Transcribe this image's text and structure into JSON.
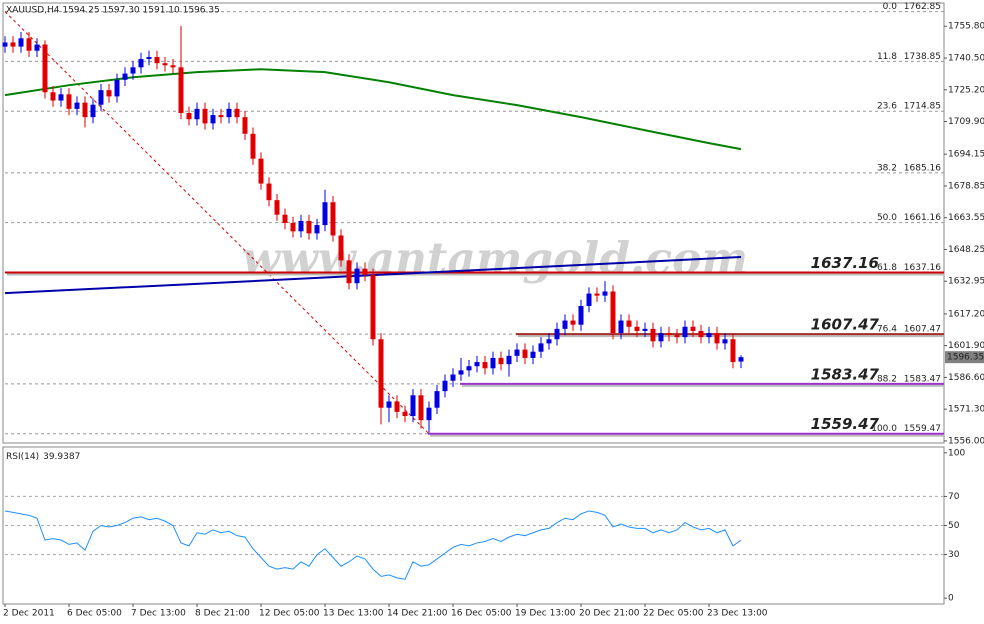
{
  "chart_data": [
    {
      "type": "candlestick",
      "title": "XAUUSD,H4  1594.25 1597.30 1591.10 1596.35",
      "watermark": "www.antamgold.com",
      "categories": [
        "2 Dec 2011",
        null,
        null,
        null,
        null,
        null,
        null,
        null,
        "6 Dec 05:00",
        null,
        null,
        null,
        null,
        null,
        null,
        null,
        "7 Dec 13:00",
        null,
        null,
        null,
        null,
        null,
        null,
        null,
        "8 Dec 21:00",
        null,
        null,
        null,
        null,
        null,
        null,
        null,
        "12 Dec 05:00",
        null,
        null,
        null,
        null,
        null,
        null,
        null,
        "13 Dec 13:00",
        null,
        null,
        null,
        null,
        null,
        null,
        null,
        "14 Dec 21:00",
        null,
        null,
        null,
        null,
        null,
        null,
        null,
        "16 Dec 05:00",
        null,
        null,
        null,
        null,
        null,
        null,
        null,
        "19 Dec 13:00",
        null,
        null,
        null,
        null,
        null,
        null,
        null,
        "20 Dec 21:00",
        null,
        null,
        null,
        null,
        null,
        null,
        null,
        "22 Dec 05:00",
        null,
        null,
        null,
        null,
        null,
        null,
        null,
        "23 Dec 13:00",
        null,
        null,
        null,
        null
      ],
      "open": [
        1746,
        1748,
        1746,
        1750,
        1744,
        1747,
        1724,
        1720,
        1723,
        1716,
        1719,
        1712,
        1718,
        1725,
        1722,
        1730,
        1733,
        1736,
        1740,
        1741,
        1738,
        1737,
        1736,
        1714,
        1711,
        1716,
        1709,
        1713,
        1712,
        1716,
        1712,
        1704,
        1692,
        1680,
        1672,
        1665,
        1661,
        1657,
        1662,
        1656,
        1660,
        1671,
        1655,
        1643,
        1632,
        1639,
        1636,
        1605,
        1572,
        1575,
        1570,
        1568,
        1578,
        1566,
        1572,
        1580,
        1585,
        1588,
        1590,
        1592,
        1594,
        1591,
        1596,
        1593,
        1597,
        1600,
        1596,
        1599,
        1603,
        1605,
        1610,
        1614,
        1612,
        1621,
        1627,
        1626,
        1628,
        1608,
        1614,
        1611,
        1609,
        1610,
        1604,
        1608,
        1607,
        1606,
        1611,
        1609,
        1606,
        1608,
        1603,
        1605,
        1594.25
      ],
      "high": [
        1751,
        1751,
        1753,
        1753,
        1750,
        1749,
        1727,
        1726,
        1726,
        1722,
        1722,
        1721,
        1728,
        1728,
        1733,
        1736,
        1739,
        1743,
        1744,
        1744,
        1741,
        1740,
        1756,
        1717,
        1719,
        1719,
        1716,
        1716,
        1719,
        1719,
        1715,
        1707,
        1695,
        1683,
        1675,
        1668,
        1664,
        1665,
        1665,
        1663,
        1677,
        1674,
        1658,
        1646,
        1642,
        1642,
        1639,
        1608,
        1578,
        1578,
        1573,
        1581,
        1581,
        1575,
        1583,
        1588,
        1591,
        1596,
        1595,
        1597,
        1597,
        1599,
        1599,
        1600,
        1603,
        1603,
        1602,
        1606,
        1608,
        1613,
        1617,
        1617,
        1624,
        1630,
        1630,
        1633,
        1631,
        1617,
        1617,
        1614,
        1613,
        1613,
        1611,
        1611,
        1610,
        1614,
        1614,
        1612,
        1611,
        1611,
        1608,
        1608,
        1597.3
      ],
      "low": [
        1743,
        1743,
        1743,
        1741,
        1741,
        1721,
        1717,
        1717,
        1713,
        1713,
        1707,
        1709,
        1715,
        1719,
        1719,
        1727,
        1730,
        1733,
        1737,
        1735,
        1734,
        1733,
        1711,
        1708,
        1708,
        1706,
        1706,
        1709,
        1709,
        1709,
        1701,
        1689,
        1677,
        1669,
        1662,
        1658,
        1654,
        1654,
        1653,
        1653,
        1657,
        1652,
        1640,
        1629,
        1629,
        1633,
        1602,
        1564,
        1565,
        1567,
        1565,
        1565,
        1562,
        1560,
        1569,
        1577,
        1582,
        1585,
        1587,
        1589,
        1588,
        1588,
        1590,
        1587,
        1594,
        1593,
        1593,
        1596,
        1600,
        1602,
        1607,
        1609,
        1609,
        1618,
        1623,
        1623,
        1605,
        1605,
        1608,
        1606,
        1606,
        1601,
        1601,
        1604,
        1603,
        1603,
        1606,
        1603,
        1603,
        1600,
        1600,
        1591,
        1591.1
      ],
      "close": [
        1748,
        1746,
        1750,
        1744,
        1747,
        1724,
        1720,
        1723,
        1716,
        1719,
        1712,
        1718,
        1725,
        1722,
        1730,
        1733,
        1736,
        1740,
        1741,
        1738,
        1737,
        1736,
        1714,
        1711,
        1716,
        1709,
        1713,
        1712,
        1716,
        1712,
        1704,
        1692,
        1680,
        1672,
        1665,
        1661,
        1657,
        1662,
        1656,
        1660,
        1671,
        1655,
        1643,
        1632,
        1639,
        1636,
        1605,
        1572,
        1575,
        1570,
        1568,
        1578,
        1566,
        1572,
        1580,
        1585,
        1588,
        1590,
        1592,
        1594,
        1591,
        1596,
        1593,
        1597,
        1600,
        1596,
        1599,
        1603,
        1605,
        1610,
        1614,
        1612,
        1621,
        1627,
        1626,
        1628,
        1608,
        1614,
        1611,
        1609,
        1610,
        1604,
        1608,
        1607,
        1606,
        1611,
        1609,
        1606,
        1608,
        1603,
        1605,
        1594,
        1596.35
      ],
      "up_color": "#0000e0",
      "down_color": "#e00000",
      "ylim": [
        1555,
        1767
      ],
      "yticks": [
        {
          "value": 1755.8,
          "label": "1755.80"
        },
        {
          "value": 1740.5,
          "label": "1740.50"
        },
        {
          "value": 1725.2,
          "label": "1725.20"
        },
        {
          "value": 1709.9,
          "label": "1709.90"
        },
        {
          "value": 1694.15,
          "label": "1694.15"
        },
        {
          "value": 1678.85,
          "label": "1678.85"
        },
        {
          "value": 1663.55,
          "label": "1663.55"
        },
        {
          "value": 1648.25,
          "label": "1648.25"
        },
        {
          "value": 1632.95,
          "label": "1632.95"
        },
        {
          "value": 1617.2,
          "label": "1617.20"
        },
        {
          "value": 1601.9,
          "label": "1601.90"
        },
        {
          "value": 1586.6,
          "label": "1586.60"
        },
        {
          "value": 1571.3,
          "label": "1571.30"
        },
        {
          "value": 1556,
          "label": "1556.00"
        }
      ],
      "fib_levels": [
        {
          "level": "0.0",
          "price": 1762.85
        },
        {
          "level": "11.8",
          "price": 1738.85
        },
        {
          "level": "23.6",
          "price": 1714.85
        },
        {
          "level": "38.2",
          "price": 1685.16
        },
        {
          "level": "50.0",
          "price": 1661.16
        },
        {
          "level": "61.8",
          "price": 1637.16
        },
        {
          "level": "76.4",
          "price": 1607.47
        },
        {
          "level": "88.2",
          "price": 1583.47
        },
        {
          "level": "100.0",
          "price": 1559.47
        }
      ],
      "levels": [
        {
          "value": 1637.16,
          "color": "#cc0000",
          "label_color": "#a00000"
        },
        {
          "value": 1607.47,
          "color": "#a52a2a",
          "label_color": "#8b0000"
        },
        {
          "value": 1583.47,
          "color": "#9933cc",
          "label_color": "#9900cc"
        },
        {
          "value": 1559.47,
          "color": "#9933cc",
          "label_color": "#9900cc"
        }
      ],
      "moving_averages": [
        {
          "color": "#008000",
          "x": [
            0,
            8,
            16,
            24,
            32,
            40,
            48,
            56,
            64,
            72,
            80,
            88,
            92
          ],
          "values": [
            1722.6,
            1727.4,
            1731.2,
            1733.7,
            1735.1,
            1733.7,
            1728.8,
            1722.6,
            1717.8,
            1712,
            1705.7,
            1699.5,
            1696.6
          ]
        },
        {
          "color": "#0000aa",
          "x": [
            0,
            23,
            46,
            69,
            92
          ],
          "values": [
            1627.2,
            1631.5,
            1635.9,
            1640.2,
            1644.6
          ]
        }
      ],
      "trendline": {
        "color": "#e00000",
        "x": [
          0,
          53
        ],
        "values": [
          1762.85,
          1559.47
        ]
      }
    },
    {
      "type": "line",
      "title": "RSI(14)",
      "color": "#1e90ff",
      "values": [
        60,
        59,
        58,
        57,
        55,
        40,
        41,
        40,
        37,
        38,
        33,
        46,
        50,
        49,
        50,
        52,
        55,
        56,
        54,
        55,
        53,
        50,
        38,
        36,
        45,
        44,
        47,
        45,
        46,
        43,
        42,
        34,
        28,
        22,
        20,
        21,
        20,
        25,
        22,
        30,
        34,
        28,
        22,
        25,
        29,
        27,
        20,
        15,
        16,
        14,
        13,
        25,
        22,
        23,
        27,
        31,
        35,
        37,
        36,
        38,
        39,
        41,
        39,
        42,
        44,
        43,
        45,
        47,
        48,
        52,
        55,
        54,
        58,
        60,
        59,
        57,
        49,
        51,
        49,
        48,
        48,
        45,
        47,
        45,
        47,
        52,
        49,
        47,
        48,
        45,
        47,
        36,
        39.9387
      ],
      "ylim": [
        -4,
        104
      ],
      "yticks": [
        0,
        30,
        50,
        70,
        100
      ]
    }
  ]
}
